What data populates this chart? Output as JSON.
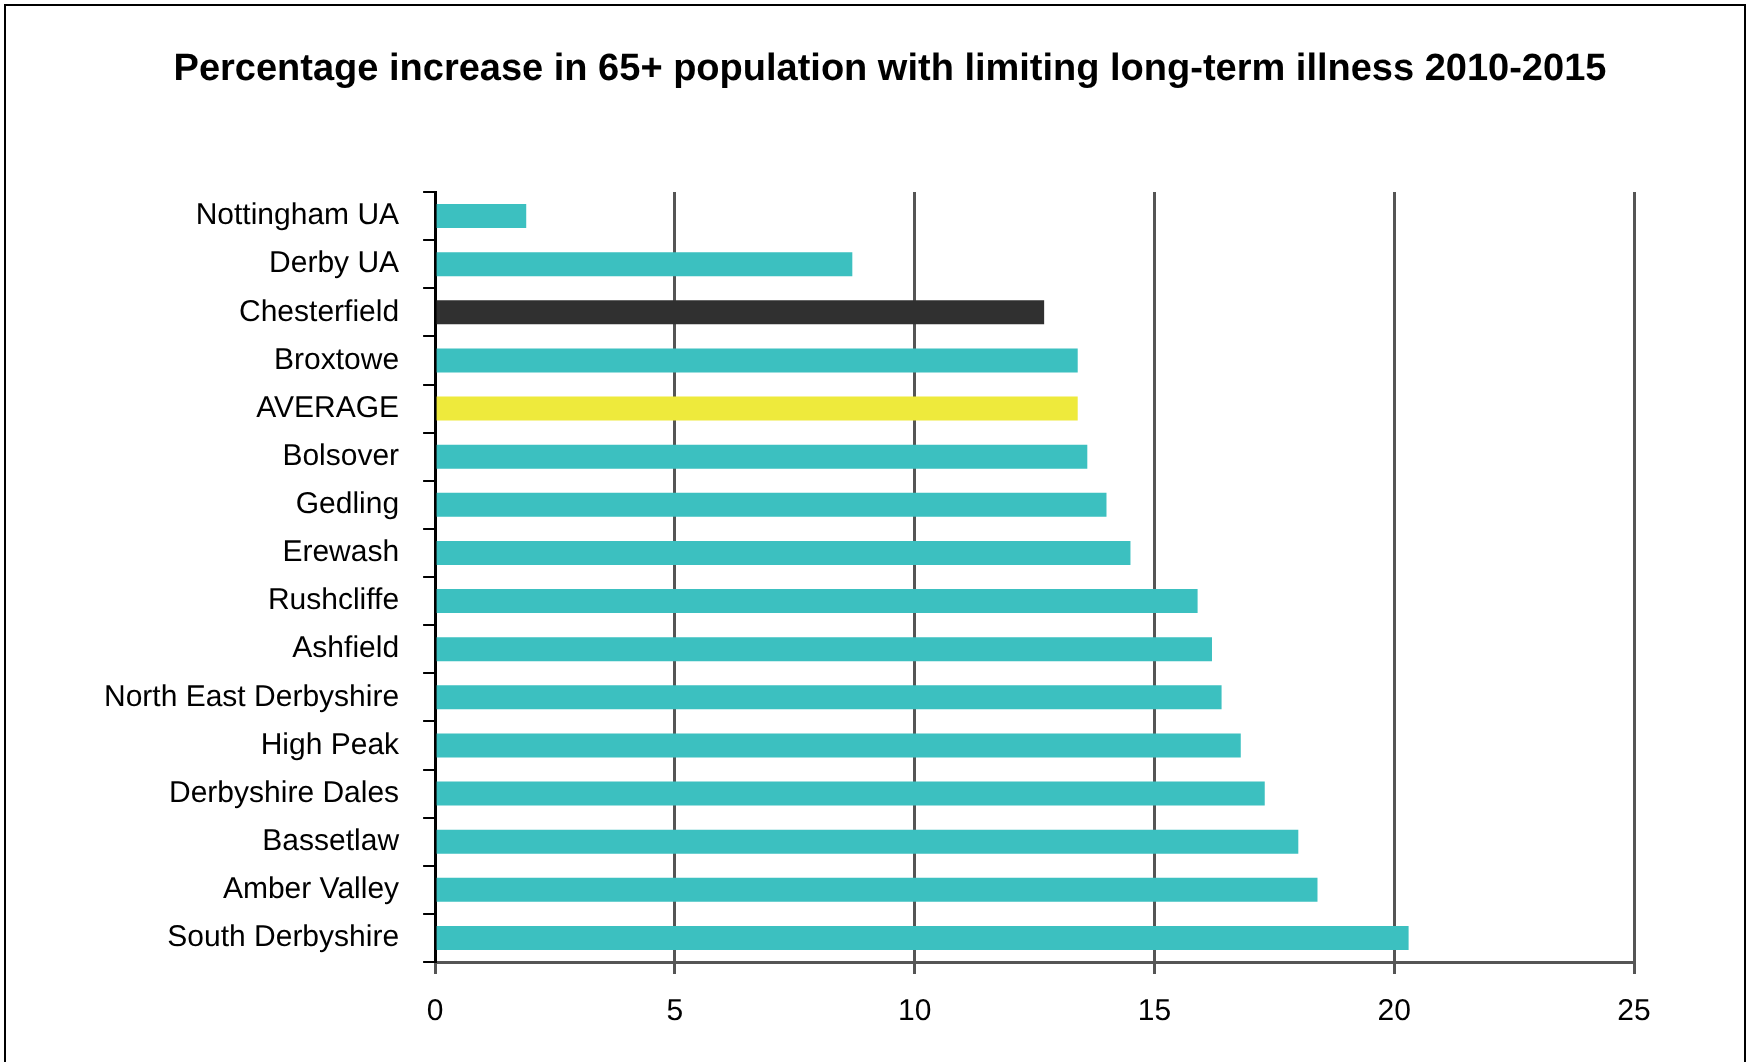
{
  "chart_data": {
    "type": "bar",
    "orientation": "horizontal",
    "title": "Percentage increase in 65+ population with limiting long-term illness 2010-2015",
    "categories": [
      "Nottingham UA",
      "Derby UA",
      "Chesterfield",
      "Broxtowe",
      "AVERAGE",
      "Bolsover",
      "Gedling",
      "Erewash",
      "Rushcliffe",
      "Ashfield",
      "North East Derbyshire",
      "High Peak",
      "Derbyshire Dales",
      "Bassetlaw",
      "Amber Valley",
      "South Derbyshire"
    ],
    "values": [
      1.9,
      8.7,
      12.7,
      13.4,
      13.4,
      13.6,
      14.0,
      14.5,
      15.9,
      16.2,
      16.4,
      16.8,
      17.3,
      18.0,
      18.4,
      20.3
    ],
    "colors": [
      "#3cc0c0",
      "#3cc0c0",
      "#303030",
      "#3cc0c0",
      "#eeea3c",
      "#3cc0c0",
      "#3cc0c0",
      "#3cc0c0",
      "#3cc0c0",
      "#3cc0c0",
      "#3cc0c0",
      "#3cc0c0",
      "#3cc0c0",
      "#3cc0c0",
      "#3cc0c0",
      "#3cc0c0"
    ],
    "xlim": [
      0,
      25
    ],
    "xticks": [
      0,
      5,
      10,
      15,
      20,
      25
    ],
    "grid": "x",
    "legend": false
  }
}
